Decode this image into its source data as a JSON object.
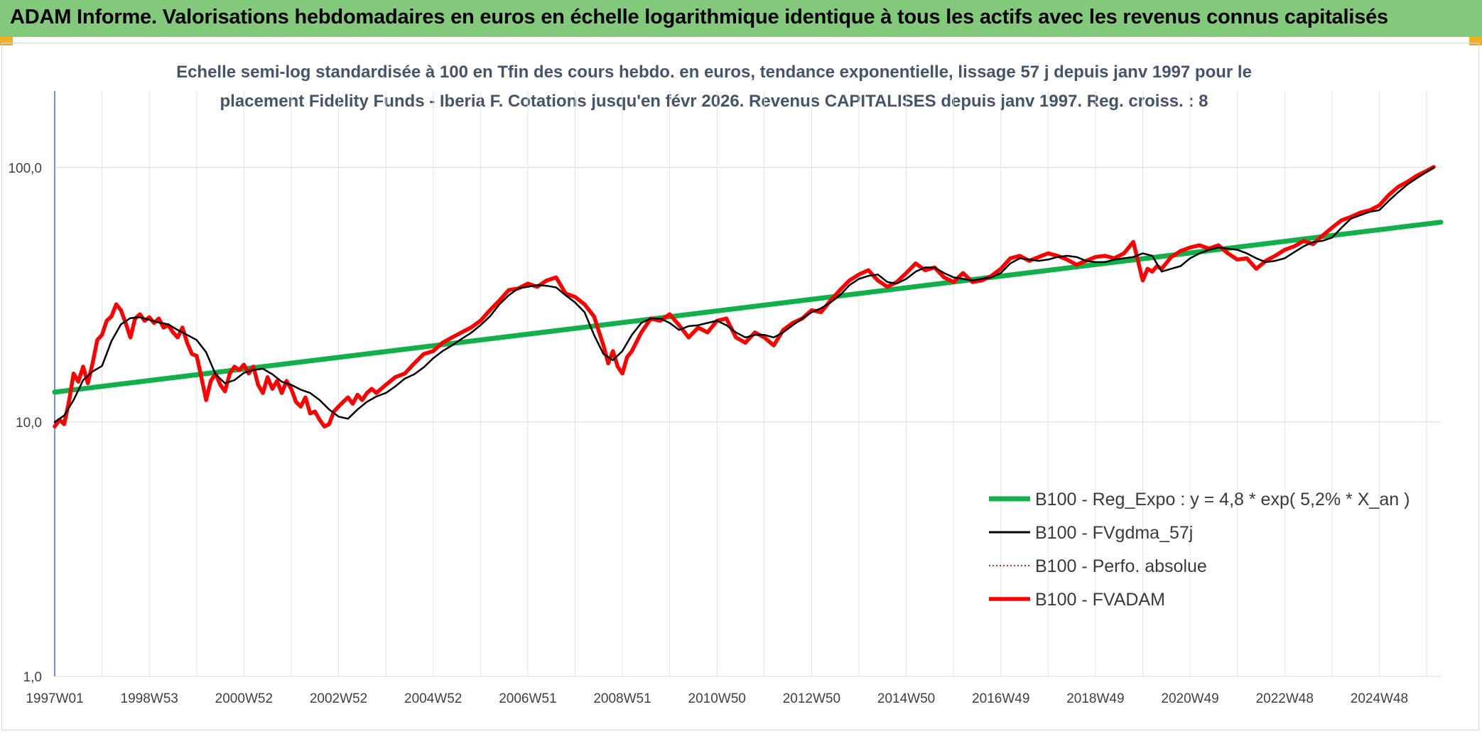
{
  "banner": {
    "title": "ADAM Informe. Valorisations hebdomadaires en euros en échelle logarithmique identique à tous les actifs avec les revenus connus capitalisés",
    "background": "#82c97c",
    "corner_color": "#f2b01e"
  },
  "chart_data": {
    "type": "line",
    "subtitle_line1": "Echelle semi-log standardisée à 100 en Tfin des cours hebdo. en euros, tendance exponentielle, lissage 57 j depuis janv 1997 pour le",
    "subtitle_line2": "placement Fidelity Funds - Iberia F. Cotations jusqu'en févr 2026. Revenus CAPITALISES depuis janv 1997. Reg. croiss. : 8",
    "y_scale": "log",
    "ylim": [
      1,
      200
    ],
    "xlim": [
      1997.0,
      2026.3
    ],
    "y_ticks": [
      {
        "value": 1,
        "label": "1,0"
      },
      {
        "value": 10,
        "label": "10,0"
      },
      {
        "value": 100,
        "label": "100,0"
      }
    ],
    "x_ticks": [
      {
        "value": 1997.0,
        "label": "1997W01"
      },
      {
        "value": 1999.0,
        "label": "1998W53"
      },
      {
        "value": 2001.0,
        "label": "2000W52"
      },
      {
        "value": 2003.0,
        "label": "2002W52"
      },
      {
        "value": 2005.0,
        "label": "2004W52"
      },
      {
        "value": 2007.0,
        "label": "2006W51"
      },
      {
        "value": 2009.0,
        "label": "2008W51"
      },
      {
        "value": 2011.0,
        "label": "2010W50"
      },
      {
        "value": 2013.0,
        "label": "2012W50"
      },
      {
        "value": 2015.0,
        "label": "2014W50"
      },
      {
        "value": 2017.0,
        "label": "2016W49"
      },
      {
        "value": 2019.0,
        "label": "2018W49"
      },
      {
        "value": 2021.0,
        "label": "2020W49"
      },
      {
        "value": 2023.0,
        "label": "2022W48"
      },
      {
        "value": 2025.0,
        "label": "2024W48"
      }
    ],
    "grid_x_years": [
      1998,
      1999,
      2000,
      2001,
      2002,
      2003,
      2004,
      2005,
      2006,
      2007,
      2008,
      2009,
      2010,
      2011,
      2012,
      2013,
      2014,
      2015,
      2016,
      2017,
      2018,
      2019,
      2020,
      2021,
      2022,
      2023,
      2024,
      2025,
      2026
    ],
    "legend_placement": "bottom-right",
    "series": [
      {
        "name": "B100 - Reg_Expo : y = 4,8 * exp( 5,2% *  X_an )",
        "color": "#11b04a",
        "style": "solid-thick",
        "x": [
          1997.0,
          2026.3
        ],
        "y": [
          13.1,
          61.0
        ]
      },
      {
        "name": "B100 - FVgdma_57j",
        "color": "#000000",
        "style": "solid",
        "x": [
          1997.0,
          1997.2,
          1997.4,
          1997.6,
          1997.8,
          1998.0,
          1998.2,
          1998.4,
          1998.6,
          1998.8,
          1999.0,
          1999.2,
          1999.4,
          1999.6,
          1999.8,
          2000.0,
          2000.2,
          2000.4,
          2000.6,
          2000.8,
          2001.0,
          2001.2,
          2001.4,
          2001.6,
          2001.8,
          2002.0,
          2002.2,
          2002.4,
          2002.6,
          2002.8,
          2003.0,
          2003.2,
          2003.4,
          2003.6,
          2003.8,
          2004.0,
          2004.2,
          2004.4,
          2004.6,
          2004.8,
          2005.0,
          2005.2,
          2005.4,
          2005.6,
          2005.8,
          2006.0,
          2006.2,
          2006.4,
          2006.6,
          2006.8,
          2007.0,
          2007.2,
          2007.4,
          2007.6,
          2007.8,
          2008.0,
          2008.2,
          2008.4,
          2008.6,
          2008.8,
          2009.0,
          2009.2,
          2009.4,
          2009.6,
          2009.8,
          2010.0,
          2010.2,
          2010.4,
          2010.6,
          2010.8,
          2011.0,
          2011.2,
          2011.4,
          2011.6,
          2011.8,
          2012.0,
          2012.2,
          2012.4,
          2012.6,
          2012.8,
          2013.0,
          2013.2,
          2013.4,
          2013.6,
          2013.8,
          2014.0,
          2014.2,
          2014.4,
          2014.6,
          2014.8,
          2015.0,
          2015.2,
          2015.4,
          2015.6,
          2015.8,
          2016.0,
          2016.2,
          2016.4,
          2016.6,
          2016.8,
          2017.0,
          2017.2,
          2017.4,
          2017.6,
          2017.8,
          2018.0,
          2018.2,
          2018.4,
          2018.6,
          2018.8,
          2019.0,
          2019.2,
          2019.4,
          2019.6,
          2019.8,
          2020.0,
          2020.2,
          2020.4,
          2020.6,
          2020.8,
          2021.0,
          2021.2,
          2021.4,
          2021.6,
          2021.8,
          2022.0,
          2022.2,
          2022.4,
          2022.6,
          2022.8,
          2023.0,
          2023.2,
          2023.4,
          2023.6,
          2023.8,
          2024.0,
          2024.2,
          2024.4,
          2024.6,
          2024.8,
          2025.0,
          2025.2,
          2025.4,
          2025.6,
          2025.8,
          2026.0,
          2026.15
        ],
        "y": [
          10.0,
          10.6,
          12.2,
          14.6,
          15.8,
          16.6,
          20.8,
          24.2,
          25.6,
          25.8,
          25.2,
          24.6,
          24.2,
          23.0,
          22.0,
          21.0,
          18.8,
          15.4,
          14.2,
          14.6,
          15.6,
          16.0,
          16.2,
          15.4,
          14.4,
          14.0,
          13.4,
          13.0,
          12.2,
          11.2,
          10.5,
          10.3,
          11.2,
          12.0,
          12.6,
          13.0,
          13.8,
          14.8,
          15.4,
          16.4,
          17.8,
          19.0,
          20.0,
          21.2,
          22.4,
          24.0,
          26.0,
          29.0,
          31.5,
          33.5,
          34.0,
          34.5,
          34.3,
          33.8,
          31.5,
          29.5,
          27.0,
          22.0,
          18.5,
          17.5,
          19.0,
          22.0,
          24.5,
          25.5,
          25.5,
          24.5,
          23.0,
          23.8,
          24.0,
          24.5,
          25.0,
          24.0,
          22.5,
          21.5,
          22.0,
          22.0,
          21.5,
          22.5,
          24.0,
          25.5,
          27.0,
          28.0,
          29.5,
          31.5,
          34.5,
          36.5,
          37.5,
          38.0,
          35.5,
          35.0,
          36.5,
          39.0,
          40.5,
          40.5,
          38.5,
          37.0,
          36.5,
          36.0,
          36.5,
          37.0,
          38.5,
          42.0,
          44.0,
          43.5,
          43.0,
          43.5,
          44.5,
          45.0,
          44.5,
          43.0,
          42.5,
          42.5,
          43.5,
          44.0,
          44.5,
          46.0,
          45.0,
          39.0,
          40.0,
          41.0,
          44.0,
          46.0,
          47.5,
          48.5,
          48.0,
          47.5,
          46.0,
          44.0,
          42.5,
          43.0,
          44.0,
          46.5,
          49.0,
          51.0,
          51.5,
          53.0,
          58.0,
          63.0,
          65.0,
          67.0,
          68.0,
          74.0,
          80.0,
          86.0,
          91.0,
          96.0,
          100.0
        ]
      },
      {
        "name": "B100 - Perfo. absolue",
        "color": "#d42a1e",
        "style": "dotted"
      },
      {
        "name": "B100 - FVADAM",
        "color": "#ff0000",
        "style": "solid-thick",
        "x": [
          1997.0,
          1997.1,
          1997.2,
          1997.3,
          1997.4,
          1997.5,
          1997.6,
          1997.7,
          1997.8,
          1997.9,
          1998.0,
          1998.1,
          1998.2,
          1998.3,
          1998.4,
          1998.5,
          1998.6,
          1998.7,
          1998.8,
          1998.9,
          1999.0,
          1999.1,
          1999.2,
          1999.3,
          1999.4,
          1999.5,
          1999.6,
          1999.7,
          1999.8,
          1999.9,
          2000.0,
          2000.1,
          2000.2,
          2000.3,
          2000.4,
          2000.5,
          2000.6,
          2000.7,
          2000.8,
          2000.9,
          2001.0,
          2001.1,
          2001.2,
          2001.3,
          2001.4,
          2001.5,
          2001.6,
          2001.7,
          2001.8,
          2001.9,
          2002.0,
          2002.1,
          2002.2,
          2002.3,
          2002.4,
          2002.5,
          2002.6,
          2002.7,
          2002.8,
          2002.9,
          2003.0,
          2003.1,
          2003.2,
          2003.3,
          2003.4,
          2003.5,
          2003.6,
          2003.7,
          2003.8,
          2003.9,
          2004.0,
          2004.2,
          2004.4,
          2004.6,
          2004.8,
          2005.0,
          2005.2,
          2005.4,
          2005.6,
          2005.8,
          2006.0,
          2006.2,
          2006.4,
          2006.6,
          2006.8,
          2007.0,
          2007.2,
          2007.4,
          2007.6,
          2007.8,
          2008.0,
          2008.2,
          2008.4,
          2008.6,
          2008.7,
          2008.8,
          2008.9,
          2009.0,
          2009.1,
          2009.2,
          2009.4,
          2009.6,
          2009.8,
          2010.0,
          2010.2,
          2010.4,
          2010.6,
          2010.8,
          2011.0,
          2011.2,
          2011.4,
          2011.6,
          2011.8,
          2012.0,
          2012.2,
          2012.4,
          2012.6,
          2012.8,
          2013.0,
          2013.2,
          2013.4,
          2013.6,
          2013.8,
          2014.0,
          2014.2,
          2014.4,
          2014.6,
          2014.8,
          2015.0,
          2015.2,
          2015.4,
          2015.6,
          2015.8,
          2016.0,
          2016.2,
          2016.4,
          2016.6,
          2016.8,
          2017.0,
          2017.2,
          2017.4,
          2017.6,
          2017.8,
          2018.0,
          2018.2,
          2018.4,
          2018.6,
          2018.8,
          2019.0,
          2019.2,
          2019.4,
          2019.6,
          2019.8,
          2020.0,
          2020.1,
          2020.2,
          2020.3,
          2020.4,
          2020.6,
          2020.8,
          2021.0,
          2021.2,
          2021.4,
          2021.6,
          2021.8,
          2022.0,
          2022.2,
          2022.4,
          2022.6,
          2022.8,
          2023.0,
          2023.2,
          2023.4,
          2023.6,
          2023.8,
          2024.0,
          2024.2,
          2024.4,
          2024.6,
          2024.8,
          2025.0,
          2025.2,
          2025.4,
          2025.6,
          2025.8,
          2026.0,
          2026.15
        ],
        "y": [
          9.6,
          10.2,
          9.8,
          12.0,
          15.5,
          14.4,
          16.5,
          14.2,
          17.0,
          21.0,
          22.0,
          25.0,
          26.0,
          29.0,
          27.5,
          24.5,
          21.5,
          25.5,
          26.5,
          25.0,
          25.8,
          24.5,
          25.5,
          23.5,
          24.0,
          22.5,
          21.5,
          23.5,
          20.5,
          18.5,
          18.2,
          15.0,
          12.2,
          14.5,
          15.5,
          14.0,
          13.2,
          15.5,
          16.5,
          16.0,
          16.8,
          15.5,
          16.5,
          14.0,
          13.0,
          15.0,
          13.5,
          14.5,
          13.0,
          14.5,
          13.5,
          12.0,
          11.5,
          12.5,
          10.8,
          11.0,
          10.2,
          9.6,
          9.8,
          11.0,
          11.5,
          12.0,
          12.5,
          11.8,
          12.8,
          12.2,
          13.0,
          13.5,
          13.0,
          13.5,
          14.0,
          15.0,
          15.5,
          17.0,
          18.5,
          19.0,
          20.5,
          21.5,
          22.5,
          23.5,
          25.0,
          27.5,
          30.0,
          33.0,
          33.5,
          35.0,
          34.0,
          36.0,
          37.0,
          32.0,
          31.0,
          29.0,
          26.0,
          20.0,
          17.0,
          19.0,
          16.5,
          15.5,
          18.0,
          19.0,
          22.5,
          25.5,
          25.0,
          26.5,
          24.0,
          21.5,
          23.5,
          22.5,
          25.0,
          25.5,
          21.5,
          20.5,
          22.5,
          21.5,
          20.0,
          23.0,
          24.5,
          25.5,
          27.5,
          27.0,
          30.0,
          33.0,
          36.0,
          38.0,
          39.5,
          36.0,
          34.0,
          35.5,
          38.5,
          42.0,
          39.5,
          40.5,
          37.0,
          35.5,
          38.5,
          35.5,
          36.0,
          37.5,
          40.0,
          44.0,
          45.0,
          43.0,
          44.5,
          46.0,
          45.0,
          43.5,
          41.5,
          43.0,
          44.5,
          45.0,
          44.0,
          46.0,
          51.0,
          36.0,
          40.0,
          39.0,
          41.0,
          40.0,
          44.5,
          47.0,
          48.5,
          49.5,
          48.0,
          49.5,
          46.0,
          43.5,
          44.0,
          40.0,
          43.0,
          45.0,
          47.5,
          49.0,
          51.5,
          50.0,
          54.0,
          58.0,
          62.0,
          64.0,
          66.5,
          68.0,
          71.0,
          78.0,
          84.0,
          88.0,
          93.0,
          97.0,
          100.5
        ]
      }
    ]
  }
}
